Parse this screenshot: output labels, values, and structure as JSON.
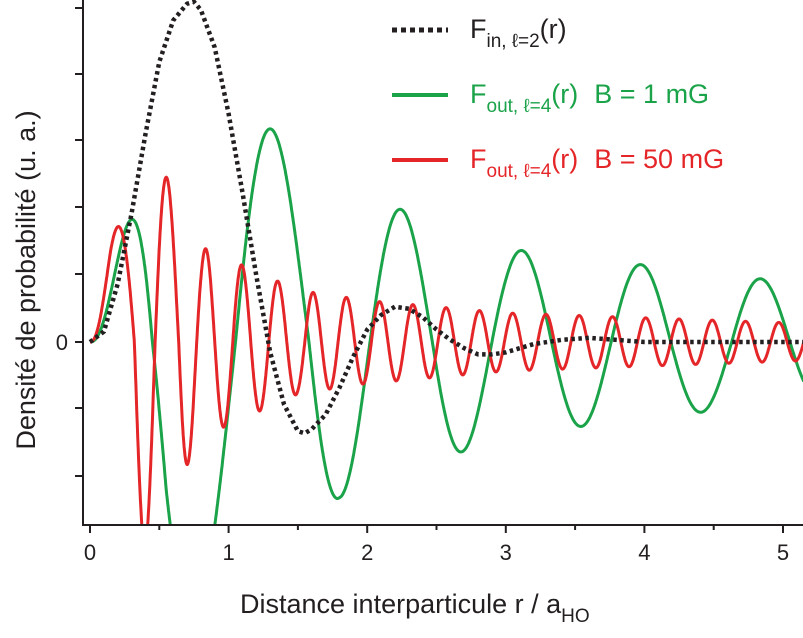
{
  "chart_data": {
    "type": "line",
    "xlabel": {
      "main": "Distance interparticule r / a",
      "sub": "HO"
    },
    "ylabel": "Densité de probabilité (u. a.)",
    "xlim": [
      -0.05,
      5.15
    ],
    "ylim": [
      -1.0,
      1.6
    ],
    "x_ticks": [
      "0",
      "1",
      "2",
      "3",
      "4",
      "5"
    ],
    "y_ticks": [
      "0"
    ],
    "grid": false,
    "legend_position": "top-right",
    "series": [
      {
        "name": "F_in, ℓ=2(r)",
        "legend": {
          "main": "F",
          "sub": "in, ℓ=2",
          "tail": "(r)",
          "extra": ""
        },
        "color": "#231f20",
        "style": "dotted",
        "points": [
          [
            0,
            0
          ],
          [
            0.1,
            0.05
          ],
          [
            0.2,
            0.28
          ],
          [
            0.3,
            0.62
          ],
          [
            0.4,
            1.0
          ],
          [
            0.5,
            1.35
          ],
          [
            0.6,
            1.55
          ],
          [
            0.7,
            1.63
          ],
          [
            0.75,
            1.64
          ],
          [
            0.8,
            1.6
          ],
          [
            0.9,
            1.42
          ],
          [
            1.0,
            1.1
          ],
          [
            1.1,
            0.72
          ],
          [
            1.2,
            0.32
          ],
          [
            1.3,
            -0.05
          ],
          [
            1.4,
            -0.3
          ],
          [
            1.5,
            -0.43
          ],
          [
            1.55,
            -0.44
          ],
          [
            1.6,
            -0.42
          ],
          [
            1.7,
            -0.35
          ],
          [
            1.8,
            -0.22
          ],
          [
            1.9,
            -0.07
          ],
          [
            2.0,
            0.06
          ],
          [
            2.1,
            0.13
          ],
          [
            2.2,
            0.17
          ],
          [
            2.3,
            0.16
          ],
          [
            2.4,
            0.12
          ],
          [
            2.5,
            0.06
          ],
          [
            2.6,
            0.01
          ],
          [
            2.7,
            -0.03
          ],
          [
            2.8,
            -0.06
          ],
          [
            2.9,
            -0.06
          ],
          [
            3.0,
            -0.05
          ],
          [
            3.1,
            -0.03
          ],
          [
            3.2,
            -0.01
          ],
          [
            3.4,
            0.01
          ],
          [
            3.6,
            0.02
          ],
          [
            3.8,
            0.01
          ],
          [
            4.0,
            0.0
          ],
          [
            5.15,
            0.0
          ]
        ]
      },
      {
        "name": "F_out, ℓ=4(r) B = 1 mG",
        "legend": {
          "main": "F",
          "sub": "out, ℓ=4",
          "tail": "(r)",
          "extra": "B = 1 mG"
        },
        "color": "#1ba34a",
        "style": "solid",
        "envelope": {
          "start": 0.2,
          "amps": [
            [
              0.4,
              1.5
            ],
            [
              1.0,
              1.2
            ],
            [
              1.8,
              0.75
            ],
            [
              3.0,
              0.45
            ],
            [
              5.15,
              0.28
            ]
          ]
        },
        "zeros": [
          0.0,
          0.45,
          1.05,
          1.58,
          2.02,
          2.47,
          2.9,
          3.33,
          3.76,
          4.19,
          4.63,
          5.05
        ]
      },
      {
        "name": "F_out, ℓ=4(r) B = 50 mG",
        "legend": {
          "main": "F",
          "sub": "out, ℓ=4",
          "tail": "(r)",
          "extra": "B = 50 mG"
        },
        "color": "#e52629",
        "style": "solid",
        "envelope": {
          "start": 0.05,
          "amps": [
            [
              0.15,
              1.6
            ],
            [
              0.4,
              1.0
            ],
            [
              0.8,
              0.46
            ],
            [
              1.5,
              0.25
            ],
            [
              2.0,
              0.2
            ],
            [
              3.0,
              0.14
            ],
            [
              5.15,
              0.09
            ]
          ]
        },
        "zeros": [
          0.0,
          0.32,
          0.47,
          0.64,
          0.77,
          0.9,
          1.03,
          1.16,
          1.29,
          1.42,
          1.55,
          1.67,
          1.79,
          1.91,
          2.03,
          2.15,
          2.27,
          2.39,
          2.51,
          2.63,
          2.75,
          2.87,
          2.99,
          3.11,
          3.23,
          3.35,
          3.47,
          3.59,
          3.71,
          3.83,
          3.95,
          4.07,
          4.19,
          4.31,
          4.43,
          4.55,
          4.67,
          4.79,
          4.91,
          5.03
        ]
      }
    ]
  }
}
